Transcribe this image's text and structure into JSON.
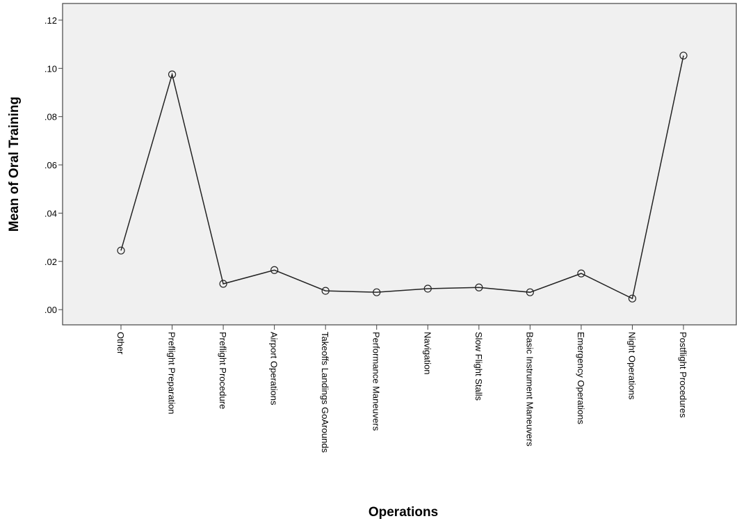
{
  "chart_data": {
    "type": "line",
    "x_label": "Operations",
    "y_label": "Mean of Oral Training",
    "categories": [
      "Other",
      "Preflight Preparation",
      "Preflight Procedure",
      "Airport Operations",
      "Takeoffs Landings GoArounds",
      "Performance Maneuvers",
      "Navigation",
      "Slow Flight Stalls",
      "Basic Instrument Maneuvers",
      "Emergency Operations",
      "Night Operations",
      "Postflight Procedures"
    ],
    "values": [
      0.0245,
      0.0975,
      0.0107,
      0.0164,
      0.0078,
      0.0072,
      0.0087,
      0.0092,
      0.0072,
      0.015,
      0.0046,
      0.1053
    ],
    "color": "#222222",
    "ylim": [
      -0.0063,
      0.1269
    ],
    "yticks": [
      {
        "value": 0,
        "label": ".00"
      },
      {
        "value": 0.02,
        "label": ".02"
      },
      {
        "value": 0.04,
        "label": ".04"
      },
      {
        "value": 0.06,
        "label": ".06"
      },
      {
        "value": 0.08,
        "label": ".08"
      },
      {
        "value": 0.1,
        "label": ".10"
      },
      {
        "value": 0.12,
        "label": ".12"
      }
    ],
    "grid": false
  }
}
